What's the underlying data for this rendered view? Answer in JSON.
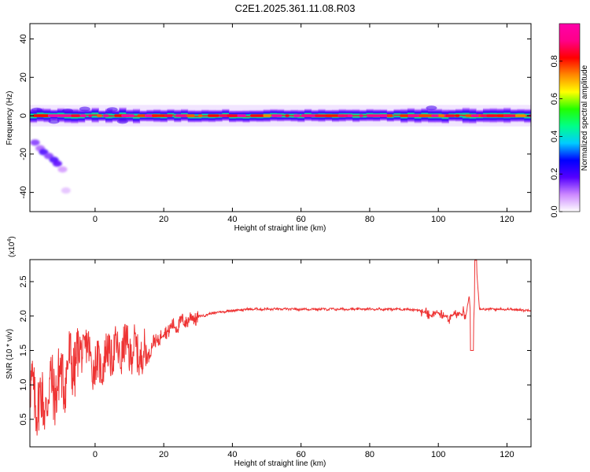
{
  "title": "C2E1.2025.361.11.08.R03",
  "chart_data": [
    {
      "type": "heatmap",
      "xlabel": "Height of straight line (km)",
      "ylabel": "Frequency (Hz)",
      "xlim": [
        -19,
        127
      ],
      "ylim": [
        -50,
        48
      ],
      "xticks": [
        0,
        20,
        40,
        60,
        80,
        100,
        120
      ],
      "yticks": [
        -40,
        -20,
        0,
        20,
        40
      ],
      "main_band": {
        "center_hz": 0,
        "halfwidth_hz": 3.5
      },
      "side_streak": [
        {
          "x": -17.5,
          "y": -14,
          "level": 0.15
        },
        {
          "x": -16,
          "y": -17,
          "level": 0.12
        },
        {
          "x": -15,
          "y": -19,
          "level": 0.2
        },
        {
          "x": -13.5,
          "y": -21,
          "level": 0.15
        },
        {
          "x": -12,
          "y": -23,
          "level": 0.2
        },
        {
          "x": -11,
          "y": -25,
          "level": 0.18
        },
        {
          "x": -9.5,
          "y": -28,
          "level": 0.08
        },
        {
          "x": -8.5,
          "y": -39,
          "level": 0.05
        }
      ],
      "colorbar": {
        "label": "Normalized spectral amplitude",
        "range": [
          0,
          1
        ],
        "ticks": [
          "0.0",
          "0.2",
          "0.4",
          "0.6",
          "0.8"
        ],
        "tick_values": [
          0,
          0.2,
          0.4,
          0.6,
          0.8
        ],
        "colors": [
          "#ffffff",
          "#cc88ff",
          "#5500ff",
          "#0000ff",
          "#00ccff",
          "#00ff88",
          "#22ff00",
          "#ffff00",
          "#ff8800",
          "#ff0000",
          "#ff0088",
          "#ff00aa"
        ]
      }
    },
    {
      "type": "line",
      "xlabel": "Height of straight line (km)",
      "ylabel": "SNR (10 * v/v)",
      "multiplier_label": "(x10",
      "multiplier_exp": "4",
      "xlim": [
        -19,
        127
      ],
      "ylim": [
        0.1,
        2.82
      ],
      "xticks": [
        0,
        20,
        40,
        60,
        80,
        100,
        120
      ],
      "yticks": [
        0.5,
        1.0,
        1.5,
        2.0,
        2.5
      ],
      "ytick_labels": [
        "0.5",
        "1.0",
        "1.5",
        "2.0",
        "2.5"
      ],
      "series_color": "#ee3333",
      "x": [
        -19,
        -17,
        -15,
        -13,
        -11,
        -9,
        -7,
        -5,
        -3,
        -1,
        1,
        3,
        5,
        7,
        9,
        11,
        13,
        15,
        17,
        19,
        21,
        23,
        25,
        27,
        29,
        31,
        35,
        40,
        45,
        50,
        60,
        70,
        80,
        90,
        95,
        98,
        100,
        102,
        104,
        106,
        108,
        109,
        110,
        111,
        112,
        115,
        120,
        127
      ],
      "values": [
        0.9,
        0.8,
        0.7,
        0.95,
        1.0,
        1.15,
        1.3,
        1.4,
        1.6,
        1.35,
        1.25,
        1.4,
        1.5,
        1.45,
        1.55,
        1.5,
        1.45,
        1.4,
        1.6,
        1.7,
        1.8,
        1.85,
        1.9,
        1.95,
        1.98,
        2.0,
        2.05,
        2.08,
        2.1,
        2.1,
        2.1,
        2.1,
        2.1,
        2.1,
        2.08,
        2.0,
        2.05,
        2.0,
        2.0,
        2.05,
        2.0,
        2.3,
        1.55,
        2.8,
        2.1,
        2.1,
        2.1,
        2.08
      ]
    }
  ]
}
